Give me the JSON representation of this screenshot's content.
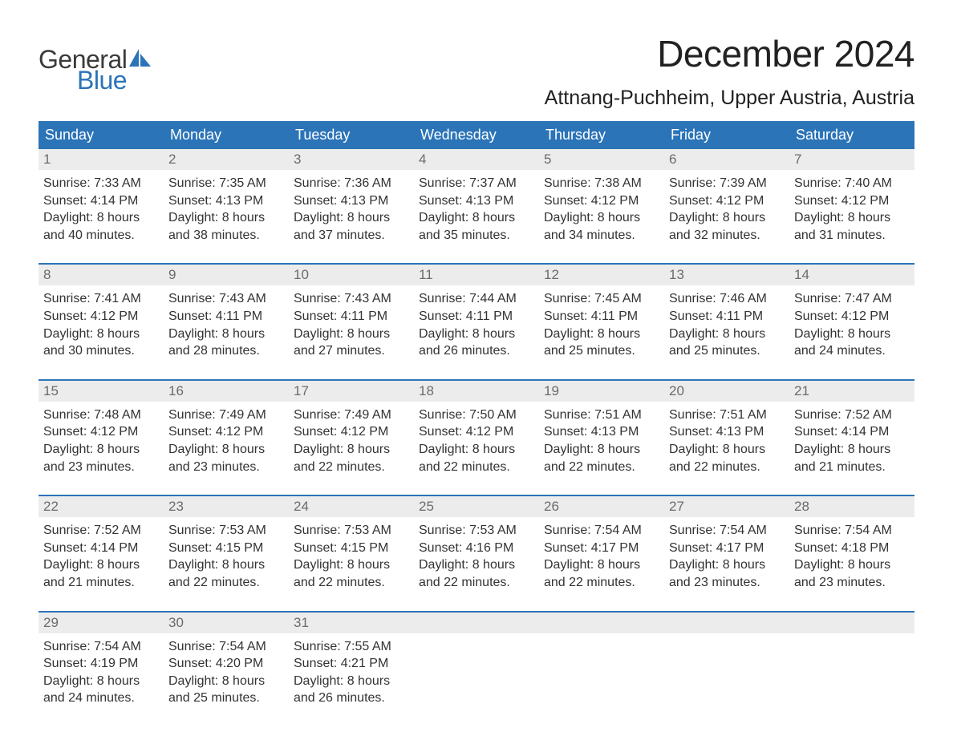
{
  "logo": {
    "word1": "General",
    "word2": "Blue",
    "text_color": "#3a3a3a",
    "accent_color": "#2b74b8"
  },
  "title": "December 2024",
  "location": "Attnang-Puchheim, Upper Austria, Austria",
  "colors": {
    "header_bg": "#2b74b8",
    "header_text": "#ffffff",
    "daynum_bg": "#ececec",
    "daynum_text": "#6b6b6b",
    "body_text": "#333333",
    "rule": "#2b74b8",
    "page_bg": "#ffffff"
  },
  "typography": {
    "title_fontsize": 46,
    "location_fontsize": 25,
    "dow_fontsize": 18,
    "daynum_fontsize": 17,
    "body_fontsize": 16
  },
  "days_of_week": [
    "Sunday",
    "Monday",
    "Tuesday",
    "Wednesday",
    "Thursday",
    "Friday",
    "Saturday"
  ],
  "weeks": [
    [
      {
        "n": "1",
        "sunrise": "Sunrise: 7:33 AM",
        "sunset": "Sunset: 4:14 PM",
        "day1": "Daylight: 8 hours",
        "day2": "and 40 minutes."
      },
      {
        "n": "2",
        "sunrise": "Sunrise: 7:35 AM",
        "sunset": "Sunset: 4:13 PM",
        "day1": "Daylight: 8 hours",
        "day2": "and 38 minutes."
      },
      {
        "n": "3",
        "sunrise": "Sunrise: 7:36 AM",
        "sunset": "Sunset: 4:13 PM",
        "day1": "Daylight: 8 hours",
        "day2": "and 37 minutes."
      },
      {
        "n": "4",
        "sunrise": "Sunrise: 7:37 AM",
        "sunset": "Sunset: 4:13 PM",
        "day1": "Daylight: 8 hours",
        "day2": "and 35 minutes."
      },
      {
        "n": "5",
        "sunrise": "Sunrise: 7:38 AM",
        "sunset": "Sunset: 4:12 PM",
        "day1": "Daylight: 8 hours",
        "day2": "and 34 minutes."
      },
      {
        "n": "6",
        "sunrise": "Sunrise: 7:39 AM",
        "sunset": "Sunset: 4:12 PM",
        "day1": "Daylight: 8 hours",
        "day2": "and 32 minutes."
      },
      {
        "n": "7",
        "sunrise": "Sunrise: 7:40 AM",
        "sunset": "Sunset: 4:12 PM",
        "day1": "Daylight: 8 hours",
        "day2": "and 31 minutes."
      }
    ],
    [
      {
        "n": "8",
        "sunrise": "Sunrise: 7:41 AM",
        "sunset": "Sunset: 4:12 PM",
        "day1": "Daylight: 8 hours",
        "day2": "and 30 minutes."
      },
      {
        "n": "9",
        "sunrise": "Sunrise: 7:43 AM",
        "sunset": "Sunset: 4:11 PM",
        "day1": "Daylight: 8 hours",
        "day2": "and 28 minutes."
      },
      {
        "n": "10",
        "sunrise": "Sunrise: 7:43 AM",
        "sunset": "Sunset: 4:11 PM",
        "day1": "Daylight: 8 hours",
        "day2": "and 27 minutes."
      },
      {
        "n": "11",
        "sunrise": "Sunrise: 7:44 AM",
        "sunset": "Sunset: 4:11 PM",
        "day1": "Daylight: 8 hours",
        "day2": "and 26 minutes."
      },
      {
        "n": "12",
        "sunrise": "Sunrise: 7:45 AM",
        "sunset": "Sunset: 4:11 PM",
        "day1": "Daylight: 8 hours",
        "day2": "and 25 minutes."
      },
      {
        "n": "13",
        "sunrise": "Sunrise: 7:46 AM",
        "sunset": "Sunset: 4:11 PM",
        "day1": "Daylight: 8 hours",
        "day2": "and 25 minutes."
      },
      {
        "n": "14",
        "sunrise": "Sunrise: 7:47 AM",
        "sunset": "Sunset: 4:12 PM",
        "day1": "Daylight: 8 hours",
        "day2": "and 24 minutes."
      }
    ],
    [
      {
        "n": "15",
        "sunrise": "Sunrise: 7:48 AM",
        "sunset": "Sunset: 4:12 PM",
        "day1": "Daylight: 8 hours",
        "day2": "and 23 minutes."
      },
      {
        "n": "16",
        "sunrise": "Sunrise: 7:49 AM",
        "sunset": "Sunset: 4:12 PM",
        "day1": "Daylight: 8 hours",
        "day2": "and 23 minutes."
      },
      {
        "n": "17",
        "sunrise": "Sunrise: 7:49 AM",
        "sunset": "Sunset: 4:12 PM",
        "day1": "Daylight: 8 hours",
        "day2": "and 22 minutes."
      },
      {
        "n": "18",
        "sunrise": "Sunrise: 7:50 AM",
        "sunset": "Sunset: 4:12 PM",
        "day1": "Daylight: 8 hours",
        "day2": "and 22 minutes."
      },
      {
        "n": "19",
        "sunrise": "Sunrise: 7:51 AM",
        "sunset": "Sunset: 4:13 PM",
        "day1": "Daylight: 8 hours",
        "day2": "and 22 minutes."
      },
      {
        "n": "20",
        "sunrise": "Sunrise: 7:51 AM",
        "sunset": "Sunset: 4:13 PM",
        "day1": "Daylight: 8 hours",
        "day2": "and 22 minutes."
      },
      {
        "n": "21",
        "sunrise": "Sunrise: 7:52 AM",
        "sunset": "Sunset: 4:14 PM",
        "day1": "Daylight: 8 hours",
        "day2": "and 21 minutes."
      }
    ],
    [
      {
        "n": "22",
        "sunrise": "Sunrise: 7:52 AM",
        "sunset": "Sunset: 4:14 PM",
        "day1": "Daylight: 8 hours",
        "day2": "and 21 minutes."
      },
      {
        "n": "23",
        "sunrise": "Sunrise: 7:53 AM",
        "sunset": "Sunset: 4:15 PM",
        "day1": "Daylight: 8 hours",
        "day2": "and 22 minutes."
      },
      {
        "n": "24",
        "sunrise": "Sunrise: 7:53 AM",
        "sunset": "Sunset: 4:15 PM",
        "day1": "Daylight: 8 hours",
        "day2": "and 22 minutes."
      },
      {
        "n": "25",
        "sunrise": "Sunrise: 7:53 AM",
        "sunset": "Sunset: 4:16 PM",
        "day1": "Daylight: 8 hours",
        "day2": "and 22 minutes."
      },
      {
        "n": "26",
        "sunrise": "Sunrise: 7:54 AM",
        "sunset": "Sunset: 4:17 PM",
        "day1": "Daylight: 8 hours",
        "day2": "and 22 minutes."
      },
      {
        "n": "27",
        "sunrise": "Sunrise: 7:54 AM",
        "sunset": "Sunset: 4:17 PM",
        "day1": "Daylight: 8 hours",
        "day2": "and 23 minutes."
      },
      {
        "n": "28",
        "sunrise": "Sunrise: 7:54 AM",
        "sunset": "Sunset: 4:18 PM",
        "day1": "Daylight: 8 hours",
        "day2": "and 23 minutes."
      }
    ],
    [
      {
        "n": "29",
        "sunrise": "Sunrise: 7:54 AM",
        "sunset": "Sunset: 4:19 PM",
        "day1": "Daylight: 8 hours",
        "day2": "and 24 minutes."
      },
      {
        "n": "30",
        "sunrise": "Sunrise: 7:54 AM",
        "sunset": "Sunset: 4:20 PM",
        "day1": "Daylight: 8 hours",
        "day2": "and 25 minutes."
      },
      {
        "n": "31",
        "sunrise": "Sunrise: 7:55 AM",
        "sunset": "Sunset: 4:21 PM",
        "day1": "Daylight: 8 hours",
        "day2": "and 26 minutes."
      },
      {
        "empty": true
      },
      {
        "empty": true
      },
      {
        "empty": true
      },
      {
        "empty": true
      }
    ]
  ]
}
